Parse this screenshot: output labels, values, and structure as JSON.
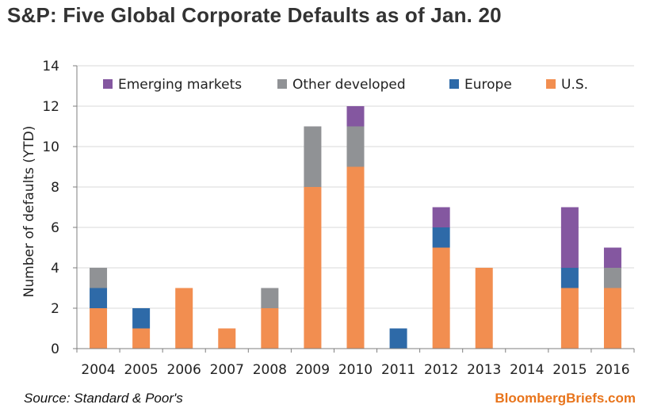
{
  "title": "S&P: Five Global Corporate Defaults as of Jan. 20",
  "source": "Source: Standard & Poor's",
  "brand": "BloombergBriefs.com",
  "colors": {
    "us": "#f28e50",
    "europe": "#2e6aa8",
    "other": "#909295",
    "em": "#8457a0",
    "grid": "#d9d9d9",
    "axis": "#7f7f7f"
  },
  "chart_data": {
    "type": "bar",
    "stacked": true,
    "title": "S&P: Five Global Corporate Defaults as of Jan. 20",
    "ylabel": "Number of defaults (YTD)",
    "xlabel": "",
    "ylim": [
      0,
      14
    ],
    "yticks": [
      0,
      2,
      4,
      6,
      8,
      10,
      12,
      14
    ],
    "grid": true,
    "legend_position": "top",
    "categories": [
      "2004",
      "2005",
      "2006",
      "2007",
      "2008",
      "2009",
      "2010",
      "2011",
      "2012",
      "2013",
      "2014",
      "2015",
      "2016"
    ],
    "series": [
      {
        "name": "U.S.",
        "color": "#f28e50",
        "values": [
          2,
          1,
          3,
          1,
          2,
          8,
          9,
          0,
          5,
          4,
          0,
          3,
          3
        ]
      },
      {
        "name": "Europe",
        "color": "#2e6aa8",
        "values": [
          1,
          1,
          0,
          0,
          0,
          0,
          0,
          1,
          1,
          0,
          0,
          1,
          0
        ]
      },
      {
        "name": "Other developed",
        "color": "#909295",
        "values": [
          1,
          0,
          0,
          0,
          1,
          3,
          2,
          0,
          0,
          0,
          0,
          0,
          1
        ]
      },
      {
        "name": "Emerging markets",
        "color": "#8457a0",
        "values": [
          0,
          0,
          0,
          0,
          0,
          0,
          1,
          0,
          1,
          0,
          0,
          3,
          1
        ]
      }
    ],
    "legend_order": [
      "Emerging markets",
      "Other developed",
      "Europe",
      "U.S."
    ]
  }
}
